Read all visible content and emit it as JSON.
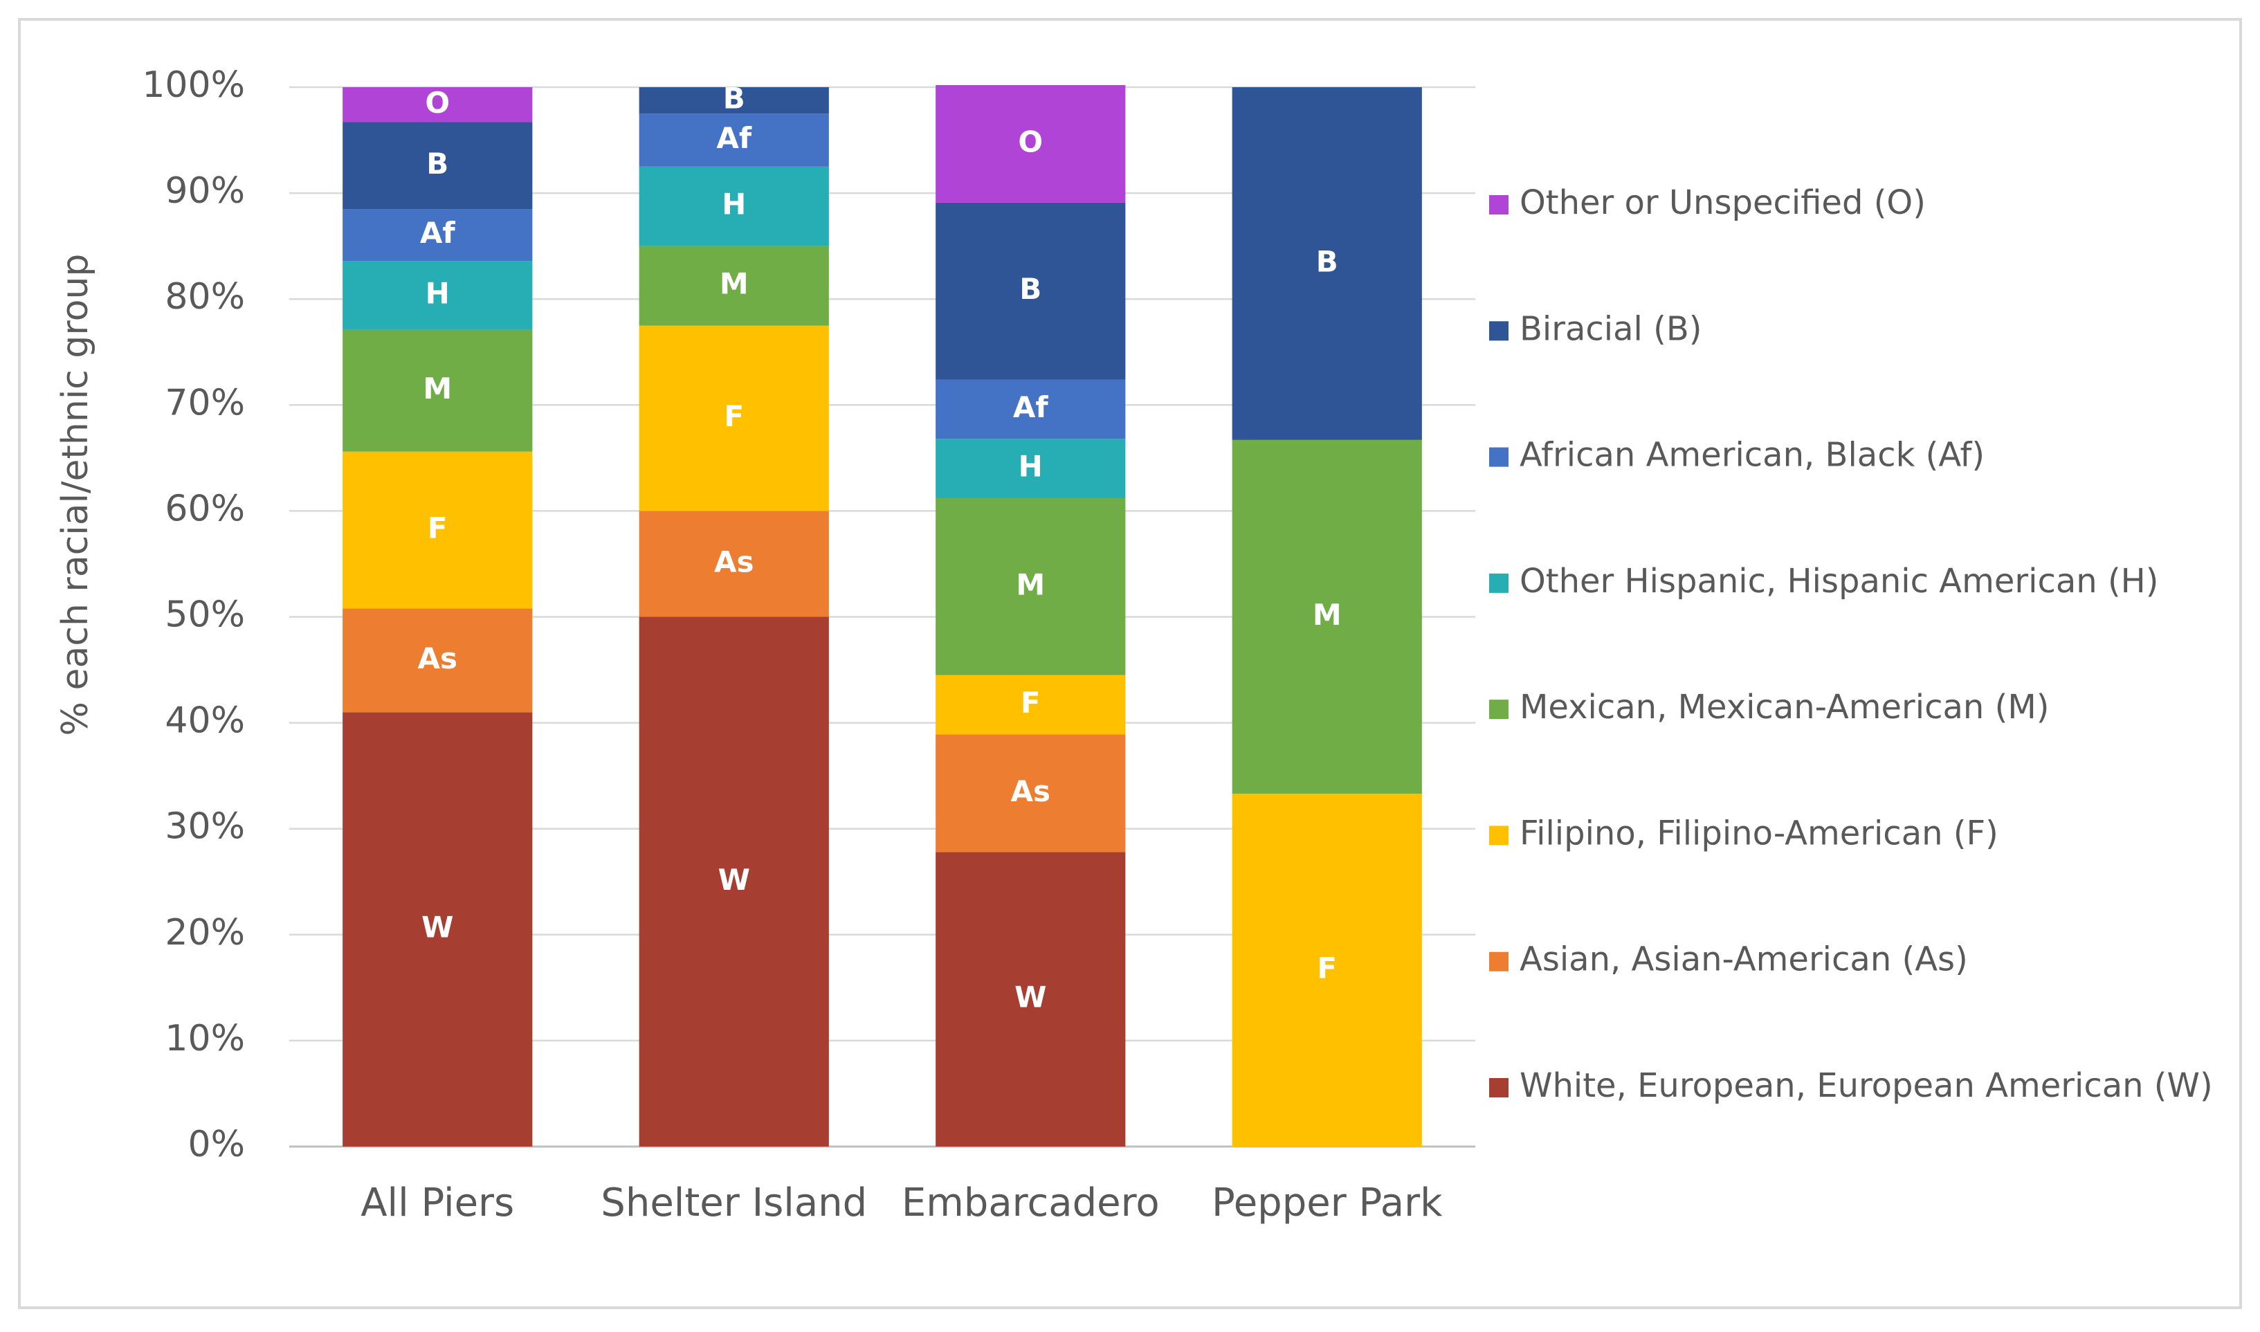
{
  "chart_data": {
    "type": "bar",
    "stacked": true,
    "percent": true,
    "categories": [
      "All Piers",
      "Shelter Island",
      "Embarcadero",
      "Pepper Park"
    ],
    "ylabel": "% each racial/ethnic group",
    "xlabel": "",
    "ylim": [
      0,
      100
    ],
    "yticks": [
      "0%",
      "10%",
      "20%",
      "30%",
      "40%",
      "50%",
      "60%",
      "70%",
      "80%",
      "90%",
      "100%"
    ],
    "grid": true,
    "legend_position": "right",
    "series": [
      {
        "key": "W",
        "code": "W",
        "name": "White, European, European American (W)",
        "color": "#A63E32",
        "label_color": "#ffffff",
        "values": [
          41,
          50,
          27.8,
          0
        ]
      },
      {
        "key": "As",
        "code": "As",
        "name": "Asian, Asian-American (As)",
        "color": "#ED7D31",
        "label_color": "#ffffff",
        "values": [
          9.8,
          10,
          11.1,
          0
        ]
      },
      {
        "key": "F",
        "code": "F",
        "name": "Filipino, Filipino-American (F)",
        "color": "#FFC000",
        "label_color": "#ffffff",
        "values": [
          14.8,
          17.5,
          5.6,
          33.3
        ]
      },
      {
        "key": "M",
        "code": "M",
        "name": "Mexican, Mexican-American (M)",
        "color": "#70AD47",
        "label_color": "#ffffff",
        "values": [
          11.5,
          7.5,
          16.7,
          33.4
        ]
      },
      {
        "key": "H",
        "code": "H",
        "name": "Other Hispanic, Hispanic American (H)",
        "color": "#27AEB4",
        "label_color": "#ffffff",
        "values": [
          6.5,
          7.5,
          5.6,
          0
        ]
      },
      {
        "key": "Af",
        "code": "Af",
        "name": "African American, Black (Af)",
        "color": "#4472C4",
        "label_color": "#ffffff",
        "values": [
          4.9,
          5,
          5.6,
          0
        ]
      },
      {
        "key": "B",
        "code": "B",
        "name": "Biracial (B)",
        "color": "#2F5597",
        "label_color": "#ffffff",
        "values": [
          8.2,
          2.5,
          16.7,
          33.3
        ]
      },
      {
        "key": "O",
        "code": "O",
        "name": "Other or Unspecified (O)",
        "color": "#B044D6",
        "label_color": "#ffffff",
        "values": [
          3.3,
          0,
          11.1,
          0
        ]
      }
    ]
  }
}
